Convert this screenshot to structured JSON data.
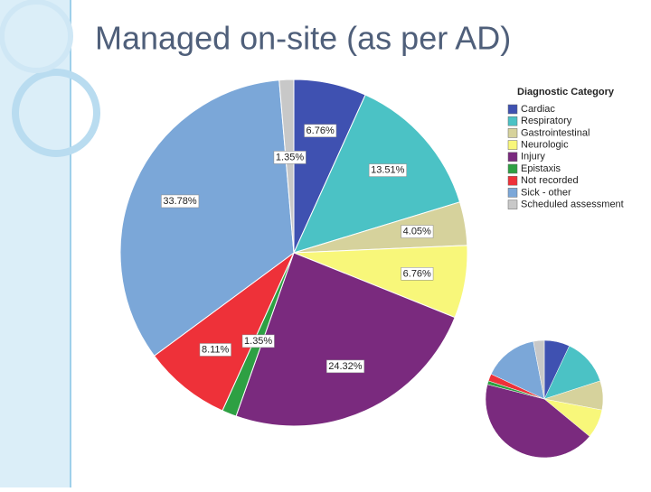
{
  "title": "Managed on-site (as per AD)",
  "chart_data": [
    {
      "type": "pie",
      "legend_title": "Diagnostic Category",
      "categories": [
        "Cardiac",
        "Respiratory",
        "Gastrointestinal",
        "Neurologic",
        "Injury",
        "Epistaxis",
        "Not recorded",
        "Sick - other",
        "Scheduled assessment"
      ],
      "values": [
        6.76,
        13.51,
        4.05,
        6.76,
        24.32,
        1.35,
        8.11,
        33.78,
        1.35
      ],
      "value_labels": [
        "6.76%",
        "13.51%",
        "4.05%",
        "6.76%",
        "24.32%",
        "1.35%",
        "8.11%",
        "33.78%",
        "1.35%"
      ],
      "colors": [
        "#3f51b1",
        "#4bc2c5",
        "#d6d29c",
        "#f8f77a",
        "#7a2a7e",
        "#2ea043",
        "#ee3139",
        "#7ba7d8",
        "#c8c8c8"
      ]
    },
    {
      "type": "pie",
      "values": [
        7,
        13,
        8,
        8,
        43,
        1,
        2,
        15,
        3
      ],
      "colors": [
        "#3f51b1",
        "#4bc2c5",
        "#d6d29c",
        "#f8f77a",
        "#7a2a7e",
        "#2ea043",
        "#ee3139",
        "#7ba7d8",
        "#c8c8c8"
      ]
    }
  ]
}
